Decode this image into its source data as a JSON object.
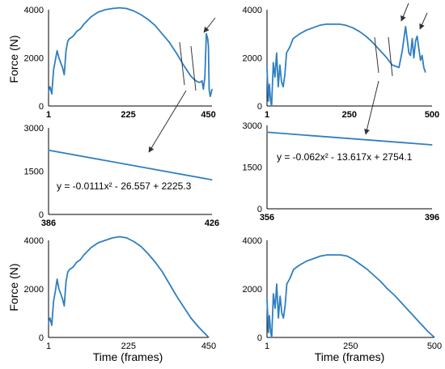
{
  "labels": {
    "force_axis": "Force (N)",
    "time_axis": "Time (frames)"
  },
  "colors": {
    "series": "#2f7fc1",
    "axis": "#000000",
    "annotation_line": "#333333"
  },
  "chart_data": [
    {
      "id": "top-left",
      "type": "line",
      "ylabel": "Force (N)",
      "xlim": [
        1,
        460
      ],
      "ylim": [
        0,
        4000
      ],
      "yticks": [
        "4000",
        "2000",
        "0"
      ],
      "xticks": [
        "1",
        "225",
        "450"
      ],
      "xticks_bold": true,
      "x": [
        1,
        5,
        10,
        15,
        20,
        25,
        30,
        35,
        40,
        45,
        50,
        55,
        60,
        70,
        80,
        90,
        100,
        120,
        140,
        160,
        180,
        200,
        220,
        240,
        260,
        280,
        300,
        320,
        340,
        360,
        380,
        400,
        410,
        420,
        426,
        432,
        436,
        440,
        444,
        448,
        450,
        452,
        455,
        458,
        460
      ],
      "y": [
        600,
        800,
        500,
        1500,
        1900,
        2300,
        2000,
        1800,
        1600,
        1300,
        2300,
        2700,
        2800,
        2900,
        3100,
        3200,
        3400,
        3700,
        3900,
        4000,
        4050,
        4080,
        4050,
        3950,
        3800,
        3600,
        3350,
        3000,
        2650,
        2200,
        1700,
        1250,
        1100,
        1000,
        980,
        1050,
        700,
        1200,
        3000,
        2800,
        2500,
        700,
        400,
        550,
        700
      ]
    },
    {
      "id": "top-right",
      "type": "line",
      "xlim": [
        1,
        500
      ],
      "ylim": [
        0,
        4000
      ],
      "yticks": [
        "4000",
        "2000",
        "0"
      ],
      "xticks": [
        "1",
        "250",
        "500"
      ],
      "xticks_bold": true,
      "x": [
        1,
        5,
        8,
        12,
        15,
        20,
        25,
        30,
        35,
        40,
        45,
        50,
        55,
        60,
        70,
        80,
        90,
        100,
        120,
        140,
        160,
        180,
        200,
        220,
        240,
        260,
        280,
        300,
        320,
        340,
        360,
        380,
        400,
        410,
        420,
        430,
        435,
        440,
        445,
        450,
        455,
        460,
        465,
        470,
        475,
        480
      ],
      "y": [
        1600,
        200,
        900,
        200,
        0,
        1800,
        1200,
        2200,
        800,
        1700,
        1000,
        800,
        1300,
        2200,
        2450,
        2800,
        2900,
        3000,
        3150,
        3250,
        3350,
        3400,
        3400,
        3400,
        3350,
        3250,
        3100,
        2900,
        2650,
        2350,
        2050,
        1700,
        1600,
        2300,
        3300,
        2200,
        2100,
        2800,
        2000,
        2700,
        2900,
        2400,
        1900,
        2100,
        1600,
        1400
      ]
    },
    {
      "id": "mid-left",
      "type": "line",
      "xlim": [
        386,
        426
      ],
      "ylim": [
        0,
        3000
      ],
      "yticks": [
        "3000",
        "1500",
        "0"
      ],
      "xticks": [
        "386",
        "426"
      ],
      "xticks_bold": true,
      "x": [
        386,
        426
      ],
      "y": [
        2225,
        1200
      ],
      "annotations": [
        "y = -0.0111x² - 26.557 + 2225.3"
      ]
    },
    {
      "id": "mid-right",
      "type": "line",
      "xlim": [
        356,
        396
      ],
      "ylim": [
        0,
        3000
      ],
      "yticks": [
        "3000",
        "1500",
        "0"
      ],
      "xticks": [
        "356",
        "396"
      ],
      "xticks_bold": true,
      "x": [
        356,
        396
      ],
      "y": [
        2754,
        2300
      ],
      "annotations": [
        "y = -0.062x² - 13.617x + 2754.1"
      ]
    },
    {
      "id": "bottom-left",
      "type": "line",
      "ylabel": "Force (N)",
      "xlabel": "Time (frames)",
      "xlim": [
        1,
        450
      ],
      "ylim": [
        0,
        4000
      ],
      "yticks": [
        "4000",
        "2000",
        "0"
      ],
      "xticks": [
        "1",
        "225",
        "450"
      ],
      "xticks_bold": false,
      "x": [
        1,
        5,
        10,
        15,
        20,
        25,
        30,
        35,
        40,
        45,
        50,
        55,
        60,
        70,
        80,
        90,
        100,
        120,
        140,
        160,
        180,
        200,
        220,
        240,
        260,
        280,
        300,
        320,
        340,
        360,
        380,
        400,
        420,
        440,
        450
      ],
      "y": [
        600,
        800,
        500,
        1500,
        1900,
        2400,
        2000,
        1800,
        1600,
        1300,
        2300,
        2700,
        2800,
        2900,
        3100,
        3200,
        3400,
        3700,
        3900,
        4000,
        4100,
        4150,
        4100,
        3950,
        3750,
        3450,
        3100,
        2700,
        2200,
        1700,
        1250,
        800,
        450,
        150,
        0
      ]
    },
    {
      "id": "bottom-right",
      "type": "line",
      "xlabel": "Time (frames)",
      "xlim": [
        1,
        500
      ],
      "ylim": [
        0,
        4000
      ],
      "yticks": [
        "4000",
        "2000",
        "0"
      ],
      "xticks": [
        "1",
        "250",
        "500"
      ],
      "xticks_bold": false,
      "x": [
        1,
        5,
        8,
        12,
        15,
        20,
        25,
        30,
        35,
        40,
        45,
        50,
        55,
        60,
        70,
        80,
        90,
        100,
        120,
        140,
        160,
        180,
        200,
        220,
        240,
        260,
        280,
        300,
        320,
        340,
        360,
        380,
        400,
        420,
        440,
        460,
        480,
        500
      ],
      "y": [
        1600,
        200,
        900,
        200,
        0,
        1800,
        1200,
        2200,
        800,
        1700,
        1000,
        800,
        1300,
        2200,
        2450,
        2800,
        2900,
        3000,
        3150,
        3250,
        3350,
        3400,
        3400,
        3400,
        3350,
        3200,
        3000,
        2800,
        2550,
        2300,
        2000,
        1750,
        1450,
        1150,
        850,
        550,
        250,
        0
      ]
    }
  ]
}
